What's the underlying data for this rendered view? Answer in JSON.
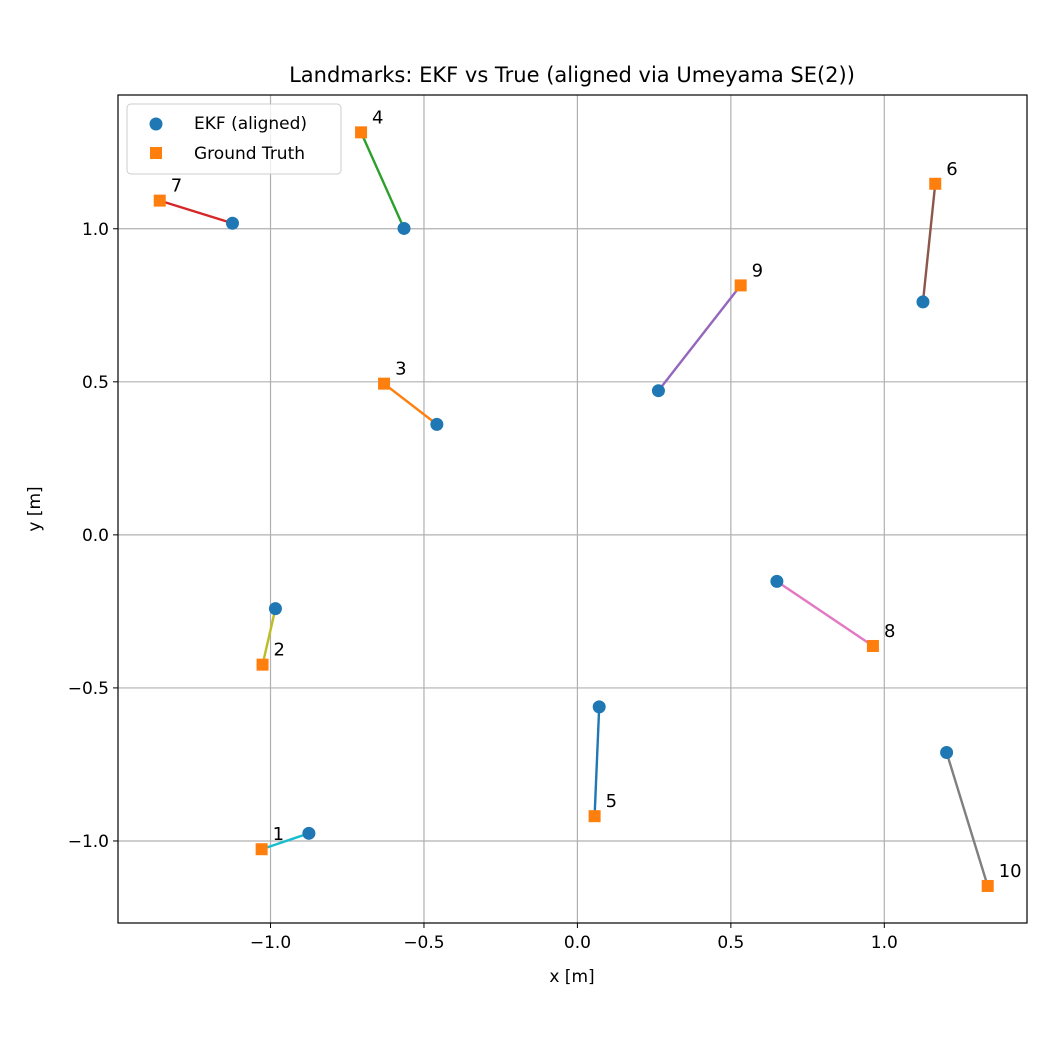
{
  "chart_data": {
    "type": "scatter",
    "title": "Landmarks: EKF vs True (aligned via Umeyama SE(2))",
    "xlabel": "x [m]",
    "ylabel": "y [m]",
    "xlim": [
      -1.497,
      1.465
    ],
    "ylim": [
      -1.268,
      1.437
    ],
    "grid": true,
    "legend_position": "top-left",
    "x_ticks": [
      {
        "value": -1.0,
        "label": "−1.0"
      },
      {
        "value": -0.5,
        "label": "−0.5"
      },
      {
        "value": 0.0,
        "label": "0.0"
      },
      {
        "value": 0.5,
        "label": "0.5"
      },
      {
        "value": 1.0,
        "label": "1.0"
      }
    ],
    "y_ticks": [
      {
        "value": -1.0,
        "label": "−1.0"
      },
      {
        "value": -0.5,
        "label": "−0.5"
      },
      {
        "value": 0.0,
        "label": "0.0"
      },
      {
        "value": 0.5,
        "label": "0.5"
      },
      {
        "value": 1.0,
        "label": "1.0"
      }
    ],
    "series": [
      {
        "name": "EKF (aligned)",
        "marker": "circle",
        "color": "#1f77b4"
      },
      {
        "name": "Ground Truth",
        "marker": "square",
        "color": "#ff7f0e"
      }
    ],
    "landmarks": [
      {
        "label": "1",
        "ekf": [
          -0.875,
          -0.975
        ],
        "truth": [
          -1.029,
          -1.027
        ],
        "color": "#17becf"
      },
      {
        "label": "2",
        "ekf": [
          -0.984,
          -0.241
        ],
        "truth": [
          -1.026,
          -0.424
        ],
        "color": "#bcbd22"
      },
      {
        "label": "3",
        "ekf": [
          -0.458,
          0.361
        ],
        "truth": [
          -0.63,
          0.494
        ],
        "color": "#ff7f0e"
      },
      {
        "label": "4",
        "ekf": [
          -0.565,
          1.001
        ],
        "truth": [
          -0.705,
          1.315
        ],
        "color": "#2ca02c"
      },
      {
        "label": "5",
        "ekf": [
          0.071,
          -0.562
        ],
        "truth": [
          0.056,
          -0.919
        ],
        "color": "#1f77b4"
      },
      {
        "label": "6",
        "ekf": [
          1.126,
          0.761
        ],
        "truth": [
          1.166,
          1.147
        ],
        "color": "#8c564b"
      },
      {
        "label": "7",
        "ekf": [
          -1.124,
          1.018
        ],
        "truth": [
          -1.361,
          1.092
        ],
        "color": "#d62728"
      },
      {
        "label": "8",
        "ekf": [
          0.65,
          -0.152
        ],
        "truth": [
          0.963,
          -0.363
        ],
        "color": "#e377c2"
      },
      {
        "label": "9",
        "ekf": [
          0.264,
          0.471
        ],
        "truth": [
          0.532,
          0.815
        ],
        "color": "#9467bd"
      },
      {
        "label": "10",
        "ekf": [
          1.203,
          -0.711
        ],
        "truth": [
          1.337,
          -1.147
        ],
        "color": "#7f7f7f"
      }
    ]
  }
}
